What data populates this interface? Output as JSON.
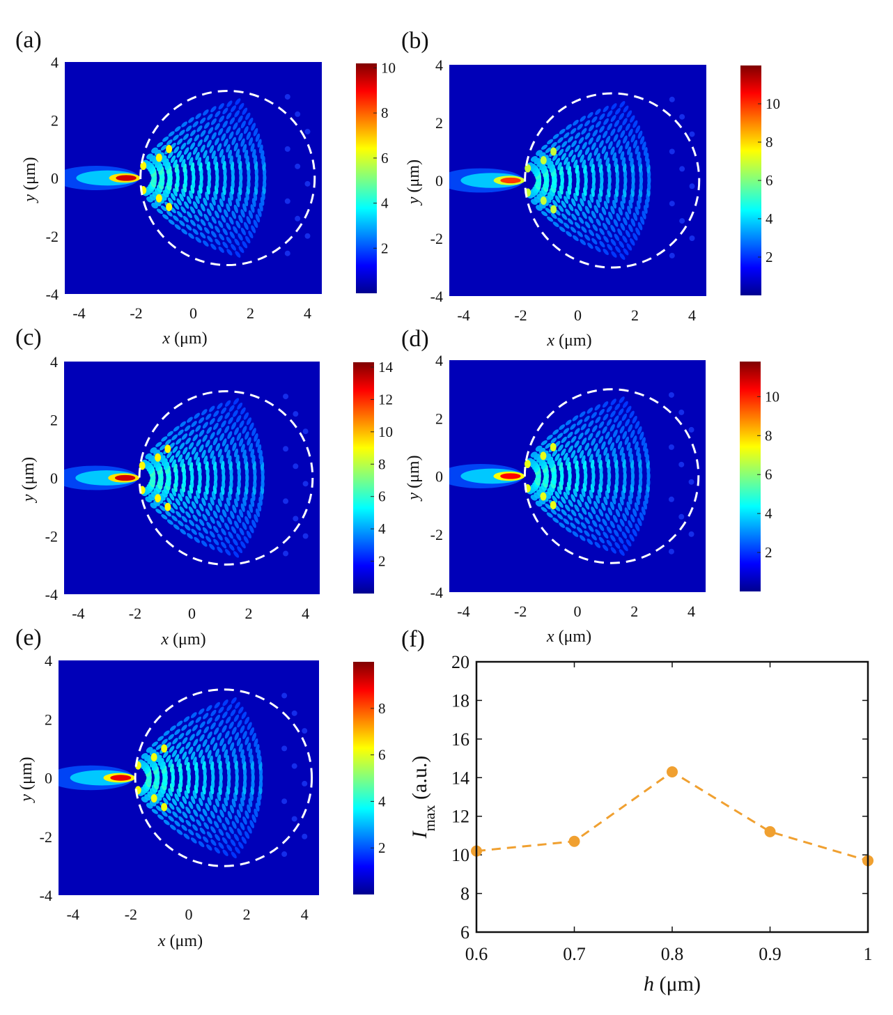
{
  "figure": {
    "panels": [
      "(a)",
      "(b)",
      "(c)",
      "(d)",
      "(e)",
      "(f)"
    ]
  },
  "chart_data": [
    {
      "type": "heatmap",
      "panel": "(a)",
      "xlabel": "x (μm)",
      "ylabel": "y (μm)",
      "xlim": [
        -4.5,
        4.5
      ],
      "ylim": [
        -4,
        4
      ],
      "xticks": [
        -4,
        -2,
        0,
        2,
        4
      ],
      "yticks": [
        -4,
        -2,
        0,
        2,
        4
      ],
      "colorbar": {
        "min": 0,
        "max": 10.2,
        "ticks": [
          2,
          4,
          6,
          8,
          10
        ]
      },
      "peak_intensity": 10.2,
      "dashed_circle": {
        "cx": 1.2,
        "cy": 0,
        "r": 3.05
      }
    },
    {
      "type": "heatmap",
      "panel": "(b)",
      "xlabel": "x (μm)",
      "ylabel": "y (μm)",
      "xlim": [
        -4.5,
        4.5
      ],
      "ylim": [
        -4,
        4
      ],
      "xticks": [
        -4,
        -2,
        0,
        2,
        4
      ],
      "yticks": [
        -4,
        -2,
        0,
        2,
        4
      ],
      "colorbar": {
        "min": 0,
        "max": 12,
        "ticks": [
          2,
          4,
          6,
          8,
          10
        ]
      },
      "peak_intensity": 10.7,
      "dashed_circle": {
        "cx": 1.2,
        "cy": 0,
        "r": 3.05
      }
    },
    {
      "type": "heatmap",
      "panel": "(c)",
      "xlabel": "x (μm)",
      "ylabel": "y (μm)",
      "xlim": [
        -4.5,
        4.5
      ],
      "ylim": [
        -4,
        4
      ],
      "xticks": [
        -4,
        -2,
        0,
        2,
        4
      ],
      "yticks": [
        -4,
        -2,
        0,
        2,
        4
      ],
      "colorbar": {
        "min": 0,
        "max": 14.3,
        "ticks": [
          2,
          4,
          6,
          8,
          10,
          12,
          14
        ]
      },
      "peak_intensity": 14.3,
      "dashed_circle": {
        "cx": 1.2,
        "cy": 0,
        "r": 3.05
      }
    },
    {
      "type": "heatmap",
      "panel": "(d)",
      "xlabel": "x (μm)",
      "ylabel": "y (μm)",
      "xlim": [
        -4.5,
        4.5
      ],
      "ylim": [
        -4,
        4
      ],
      "xticks": [
        -4,
        -2,
        0,
        2,
        4
      ],
      "yticks": [
        -4,
        -2,
        0,
        2,
        4
      ],
      "colorbar": {
        "min": 0,
        "max": 11.8,
        "ticks": [
          2,
          4,
          6,
          8,
          10
        ]
      },
      "peak_intensity": 11.2,
      "dashed_circle": {
        "cx": 1.2,
        "cy": 0,
        "r": 3.05
      }
    },
    {
      "type": "heatmap",
      "panel": "(e)",
      "xlabel": "x (μm)",
      "ylabel": "y (μm)",
      "xlim": [
        -4.5,
        4.5
      ],
      "ylim": [
        -4,
        4
      ],
      "xticks": [
        -4,
        -2,
        0,
        2,
        4
      ],
      "yticks": [
        -4,
        -2,
        0,
        2,
        4
      ],
      "colorbar": {
        "min": 0,
        "max": 10,
        "ticks": [
          2,
          4,
          6,
          8
        ]
      },
      "peak_intensity": 9.7,
      "dashed_circle": {
        "cx": 1.2,
        "cy": 0,
        "r": 3.05
      }
    },
    {
      "type": "line",
      "panel": "(f)",
      "xlabel": "h (μm)",
      "ylabel": "I_max (a.u.)",
      "xlim": [
        0.6,
        1.0
      ],
      "ylim": [
        6,
        20
      ],
      "xticks": [
        0.6,
        0.7,
        0.8,
        0.9,
        1.0
      ],
      "xticklabels": [
        "0.6",
        "0.7",
        "0.8",
        "0.9",
        "1"
      ],
      "yticks": [
        6,
        8,
        10,
        12,
        14,
        16,
        18,
        20
      ],
      "series": [
        {
          "name": "Imax",
          "color": "#f0a030",
          "linestyle": "dashed",
          "marker": "circle",
          "x": [
            0.6,
            0.7,
            0.8,
            0.9,
            1.0
          ],
          "y": [
            10.2,
            10.7,
            14.3,
            11.2,
            9.7
          ]
        }
      ]
    }
  ]
}
